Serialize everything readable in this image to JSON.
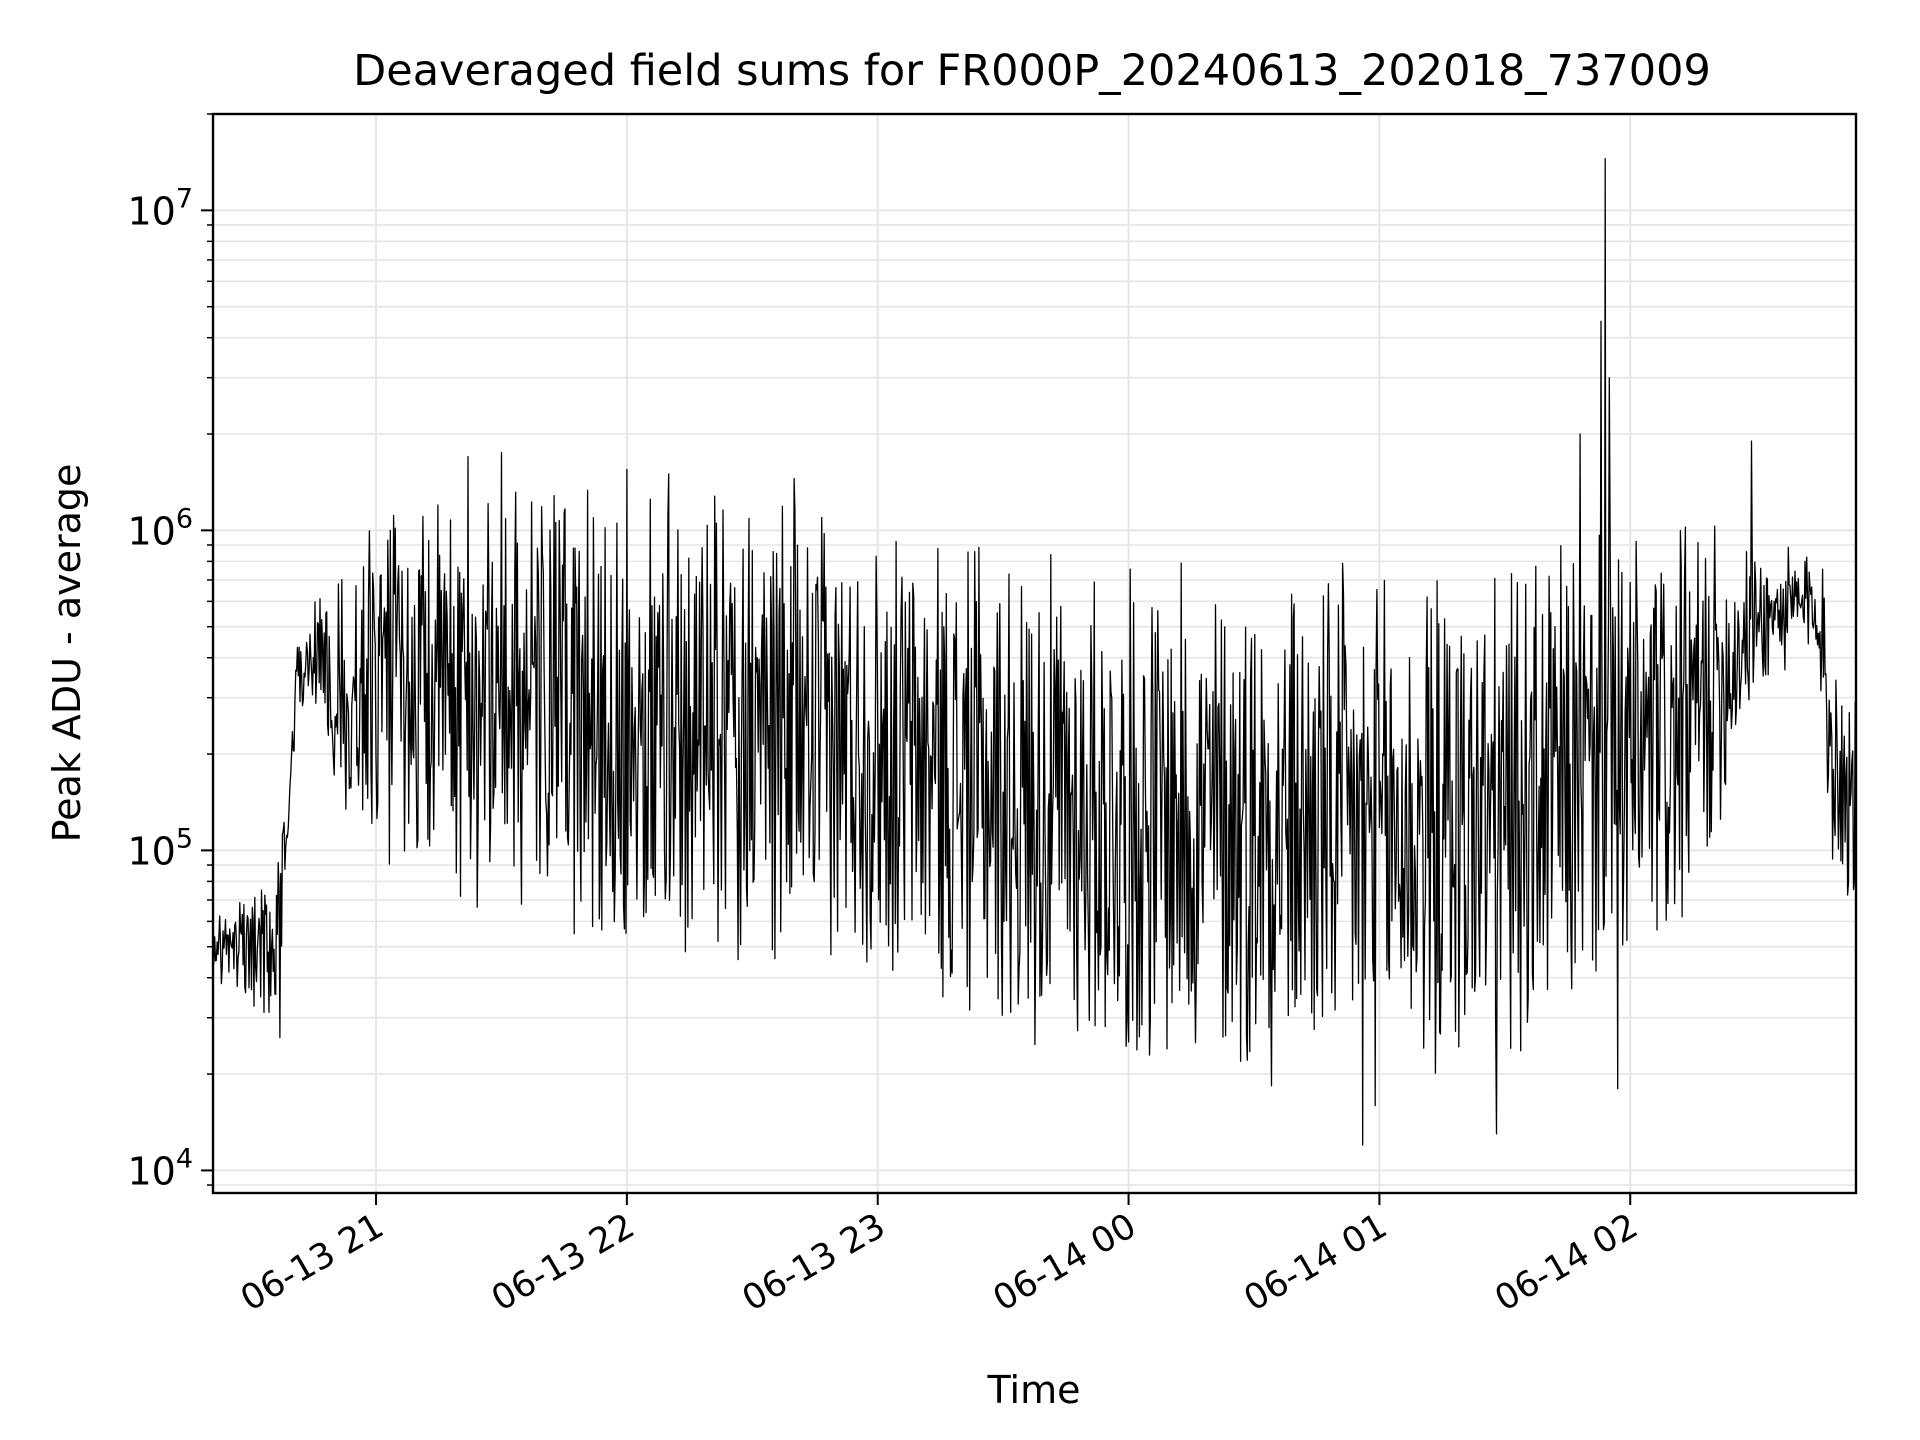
{
  "chart_data": {
    "type": "line",
    "title": "Deaveraged field sums for FR000P_20240613_202018_737009",
    "xlabel": "Time",
    "ylabel": "Peak ADU - average",
    "yscale": "log",
    "xlim": [
      "2024-06-13T20:21:00",
      "2024-06-14T02:54:00"
    ],
    "ylim": [
      8500,
      20000000
    ],
    "grid": true,
    "line_color": "#000000",
    "grid_color": "#e6e6e6",
    "x_ticks": [
      {
        "t": "2024-06-13T21:00:00",
        "label": "06-13 21"
      },
      {
        "t": "2024-06-13T22:00:00",
        "label": "06-13 22"
      },
      {
        "t": "2024-06-13T23:00:00",
        "label": "06-13 23"
      },
      {
        "t": "2024-06-14T00:00:00",
        "label": "06-14 00"
      },
      {
        "t": "2024-06-14T01:00:00",
        "label": "06-14 01"
      },
      {
        "t": "2024-06-14T02:00:00",
        "label": "06-14 02"
      }
    ],
    "y_ticks": [
      {
        "value": 10000,
        "base": "10",
        "exp": "4"
      },
      {
        "value": 100000,
        "base": "10",
        "exp": "5"
      },
      {
        "value": 1000000,
        "base": "10",
        "exp": "6"
      },
      {
        "value": 10000000,
        "base": "10",
        "exp": "7"
      }
    ],
    "series": [
      {
        "sample_interval_s": 12,
        "x_start": "2024-06-13T20:21:00",
        "profile": [
          {
            "t": "2024-06-13T20:21:00",
            "lo": 40000,
            "hi": 65000
          },
          {
            "t": "2024-06-13T20:33:00",
            "lo": 30000,
            "hi": 80000
          },
          {
            "t": "2024-06-13T20:36:00",
            "lo": 26000,
            "hi": 80000
          },
          {
            "t": "2024-06-13T20:39:00",
            "lo": 100000,
            "hi": 200000
          },
          {
            "t": "2024-06-13T20:41:00",
            "lo": 250000,
            "hi": 450000
          },
          {
            "t": "2024-06-13T20:45:00",
            "lo": 300000,
            "hi": 600000
          },
          {
            "t": "2024-06-13T20:50:00",
            "lo": 150000,
            "hi": 700000
          },
          {
            "t": "2024-06-13T21:00:00",
            "lo": 90000,
            "hi": 1200000
          },
          {
            "t": "2024-06-13T21:30:00",
            "lo": 60000,
            "hi": 1500000
          },
          {
            "t": "2024-06-13T22:00:00",
            "lo": 45000,
            "hi": 1400000
          },
          {
            "t": "2024-06-13T22:30:00",
            "lo": 45000,
            "hi": 1300000
          },
          {
            "t": "2024-06-13T23:00:00",
            "lo": 40000,
            "hi": 1100000
          },
          {
            "t": "2024-06-13T23:30:00",
            "lo": 25000,
            "hi": 900000
          },
          {
            "t": "2024-06-14T00:00:00",
            "lo": 20000,
            "hi": 800000
          },
          {
            "t": "2024-06-14T00:30:00",
            "lo": 18000,
            "hi": 850000
          },
          {
            "t": "2024-06-14T01:00:00",
            "lo": 15000,
            "hi": 800000
          },
          {
            "t": "2024-06-14T01:30:00",
            "lo": 20000,
            "hi": 800000
          },
          {
            "t": "2024-06-14T01:50:00",
            "lo": 30000,
            "hi": 1000000
          },
          {
            "t": "2024-06-14T02:10:00",
            "lo": 40000,
            "hi": 1000000
          },
          {
            "t": "2024-06-14T02:20:00",
            "lo": 100000,
            "hi": 1100000
          },
          {
            "t": "2024-06-14T02:30:00",
            "lo": 300000,
            "hi": 900000
          },
          {
            "t": "2024-06-14T02:45:00",
            "lo": 400000,
            "hi": 900000
          },
          {
            "t": "2024-06-14T02:48:00",
            "lo": 80000,
            "hi": 600000
          },
          {
            "t": "2024-06-14T02:54:00",
            "lo": 60000,
            "hi": 300000
          }
        ],
        "peaks": [
          {
            "t": "2024-06-13T21:22:00",
            "value": 1700000
          },
          {
            "t": "2024-06-13T21:30:00",
            "value": 1750000
          },
          {
            "t": "2024-06-13T22:00:00",
            "value": 1550000
          },
          {
            "t": "2024-06-13T22:10:00",
            "value": 1500000
          },
          {
            "t": "2024-06-13T22:40:00",
            "value": 1450000
          },
          {
            "t": "2024-06-14T01:48:00",
            "value": 2000000
          },
          {
            "t": "2024-06-14T01:53:00",
            "value": 4500000
          },
          {
            "t": "2024-06-14T01:54:00",
            "value": 14500000
          },
          {
            "t": "2024-06-14T01:55:00",
            "value": 3000000
          },
          {
            "t": "2024-06-14T02:29:00",
            "value": 1900000
          }
        ],
        "dips": [
          {
            "t": "2024-06-13T20:37:00",
            "value": 26000
          },
          {
            "t": "2024-06-14T00:56:00",
            "value": 12000
          },
          {
            "t": "2024-06-14T01:28:00",
            "value": 13000
          },
          {
            "t": "2024-06-14T01:57:00",
            "value": 18000
          }
        ]
      }
    ]
  }
}
